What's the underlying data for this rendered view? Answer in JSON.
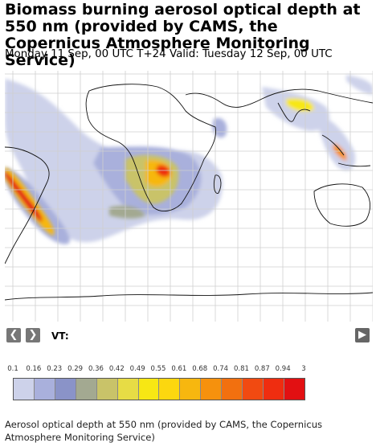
{
  "header": {
    "title": "Biomass burning aerosol optical depth at 550 nm (provided by CAMS, the Copernicus Atmosphere Monitoring Service)",
    "subtitle": "Monday 11 Sep, 00 UTC T+24 Valid: Tuesday 12 Sep, 00 UTC"
  },
  "controls": {
    "prev_icon": "chevron-left-icon",
    "next_icon": "chevron-right-icon",
    "vt_label": "VT:",
    "play_icon": "play-icon"
  },
  "legend": {
    "ticks": [
      "0.1",
      "0.16",
      "0.23",
      "0.29",
      "0.36",
      "0.42",
      "0.49",
      "0.55",
      "0.61",
      "0.68",
      "0.74",
      "0.81",
      "0.87",
      "0.94",
      "3"
    ],
    "colors": [
      "#cdd2ea",
      "#a9b0dc",
      "#8a93c8",
      "#a3a991",
      "#c9c369",
      "#e7dc45",
      "#f7e714",
      "#fcd70f",
      "#f7b70f",
      "#f6910d",
      "#f2700f",
      "#f14a11",
      "#ef2d10",
      "#e21012"
    ]
  },
  "caption": "Aerosol optical depth at 550 nm (provided by CAMS, the Copernicus Atmosphere Monitoring Service)"
}
